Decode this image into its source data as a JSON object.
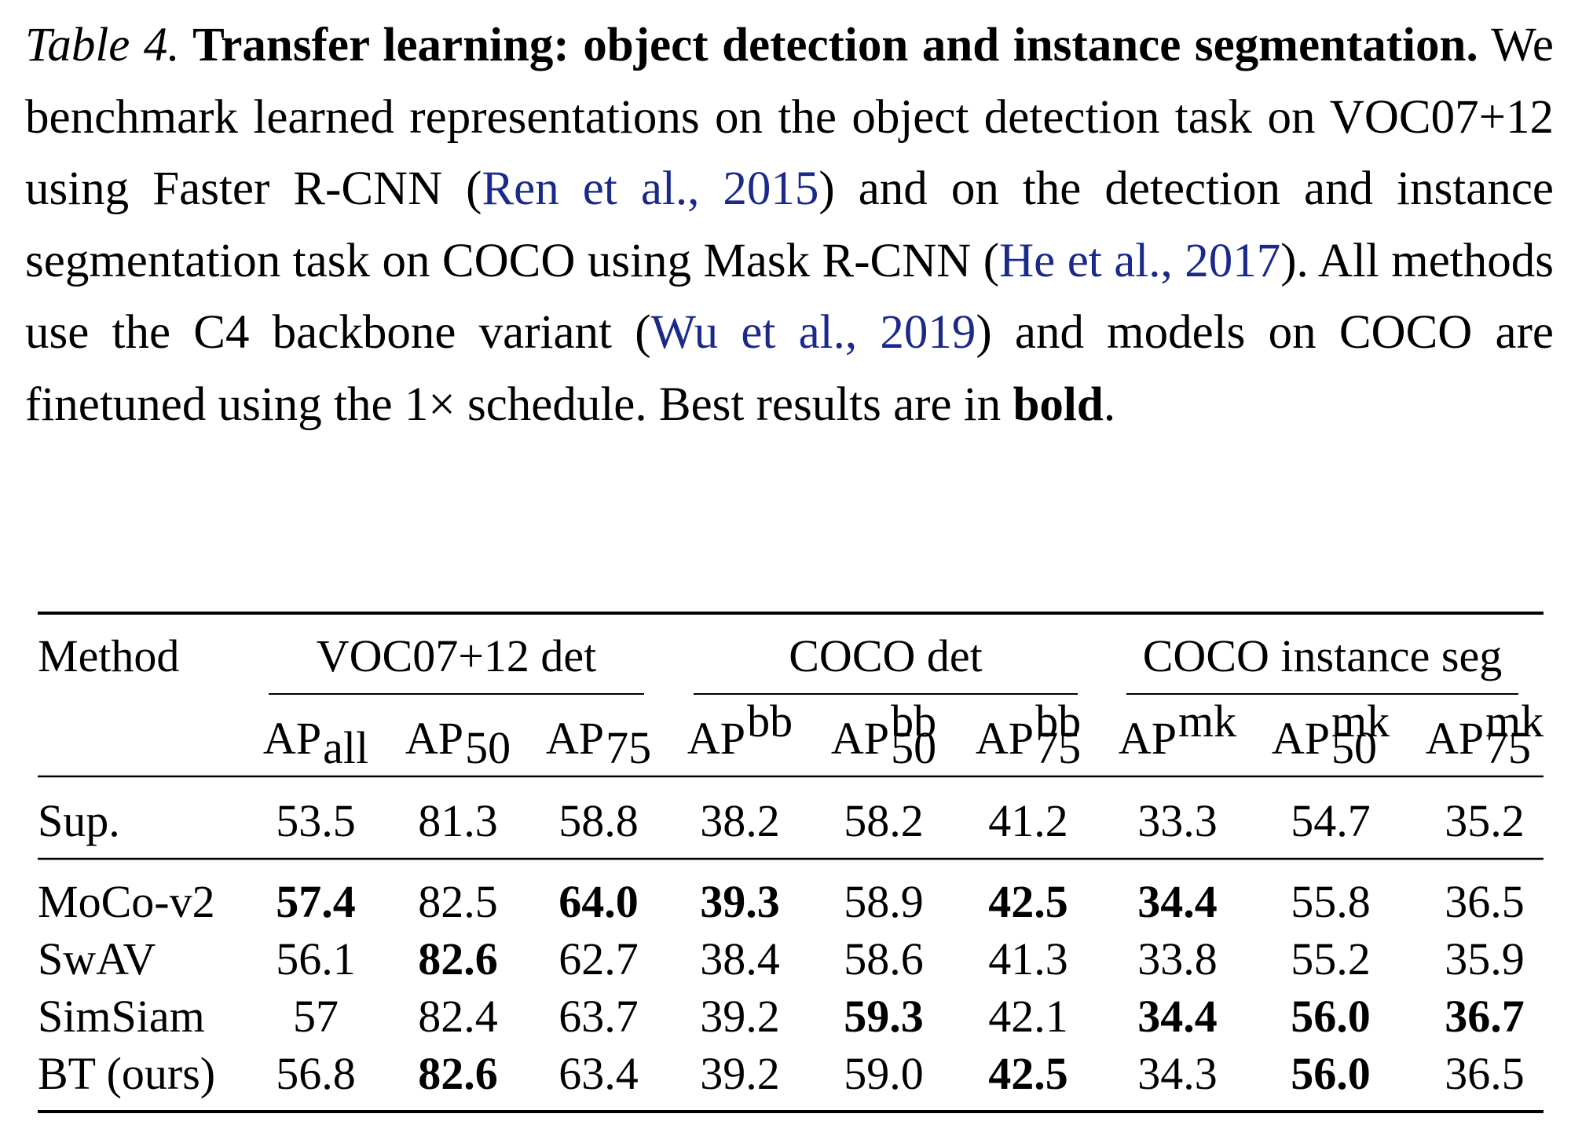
{
  "caption": [
    {
      "text": "Table 4.",
      "style": "italic"
    },
    {
      "text": " Transfer learning: object detection and instance seg­mentation.",
      "style": "bold"
    },
    {
      "text": " We benchmark learned representations on the object detection task on VOC07+12 using Faster R-CNN (",
      "style": "normal"
    },
    {
      "text": "Ren et al., 2015",
      "style": "link"
    },
    {
      "text": ") and on the detection and instance segmentation task on COCO using Mask R-CNN (",
      "style": "normal"
    },
    {
      "text": "He et al., 2017",
      "style": "link"
    },
    {
      "text": "). All methods use the C4 backbone variant (",
      "style": "normal"
    },
    {
      "text": "Wu et al., 2019",
      "style": "link"
    },
    {
      "text": ") and models on COCO are finetuned using the 1× schedule. Best results are in ",
      "style": "normal"
    },
    {
      "text": "bold",
      "style": "bold"
    },
    {
      "text": ".",
      "style": "normal"
    }
  ],
  "table": {
    "method_header": "Method",
    "groups": [
      {
        "label": "VOC07+12 det",
        "columns": [
          {
            "base": "AP",
            "sub": "all"
          },
          {
            "base": "AP",
            "sub": "50"
          },
          {
            "base": "AP",
            "sub": "75"
          }
        ]
      },
      {
        "label": "COCO det",
        "columns": [
          {
            "base": "AP",
            "sup": "bb"
          },
          {
            "base": "AP",
            "sup": "bb",
            "sub": "50"
          },
          {
            "base": "AP",
            "sup": "bb",
            "sub": "75"
          }
        ]
      },
      {
        "label": "COCO instance seg",
        "columns": [
          {
            "base": "AP",
            "sup": "mk"
          },
          {
            "base": "AP",
            "sup": "mk",
            "sub": "50"
          },
          {
            "base": "AP",
            "sup": "mk",
            "sub": "75"
          }
        ]
      }
    ],
    "sections": [
      [
        {
          "method": "Sup.",
          "cells": [
            {
              "text": "53.5"
            },
            {
              "text": "81.3"
            },
            {
              "text": "58.8"
            },
            {
              "text": "38.2"
            },
            {
              "text": "58.2"
            },
            {
              "text": "41.2"
            },
            {
              "text": "33.3"
            },
            {
              "text": "54.7"
            },
            {
              "text": "35.2"
            }
          ]
        }
      ],
      [
        {
          "method": "MoCo-v2",
          "cells": [
            {
              "text": "57.4",
              "bold": true
            },
            {
              "text": "82.5"
            },
            {
              "text": "64.0",
              "bold": true
            },
            {
              "text": "39.3",
              "bold": true
            },
            {
              "text": "58.9"
            },
            {
              "text": "42.5",
              "bold": true
            },
            {
              "text": "34.4",
              "bold": true
            },
            {
              "text": "55.8"
            },
            {
              "text": "36.5"
            }
          ]
        },
        {
          "method": "SwAV",
          "cells": [
            {
              "text": "56.1"
            },
            {
              "text": "82.6",
              "bold": true
            },
            {
              "text": "62.7"
            },
            {
              "text": "38.4"
            },
            {
              "text": "58.6"
            },
            {
              "text": "41.3"
            },
            {
              "text": "33.8"
            },
            {
              "text": "55.2"
            },
            {
              "text": "35.9"
            }
          ]
        },
        {
          "method": "SimSiam",
          "cells": [
            {
              "text": "57"
            },
            {
              "text": "82.4"
            },
            {
              "text": "63.7"
            },
            {
              "text": "39.2"
            },
            {
              "text": "59.3",
              "bold": true
            },
            {
              "text": "42.1"
            },
            {
              "text": "34.4",
              "bold": true
            },
            {
              "text": "56.0",
              "bold": true
            },
            {
              "text": "36.7",
              "bold": true
            }
          ]
        },
        {
          "method": "BT (ours)",
          "cells": [
            {
              "text": "56.8"
            },
            {
              "text": "82.6",
              "bold": true
            },
            {
              "text": "63.4"
            },
            {
              "text": "39.2"
            },
            {
              "text": "59.0"
            },
            {
              "text": "42.5",
              "bold": true
            },
            {
              "text": "34.3"
            },
            {
              "text": "56.0",
              "bold": true
            },
            {
              "text": "36.5"
            }
          ]
        }
      ]
    ]
  }
}
